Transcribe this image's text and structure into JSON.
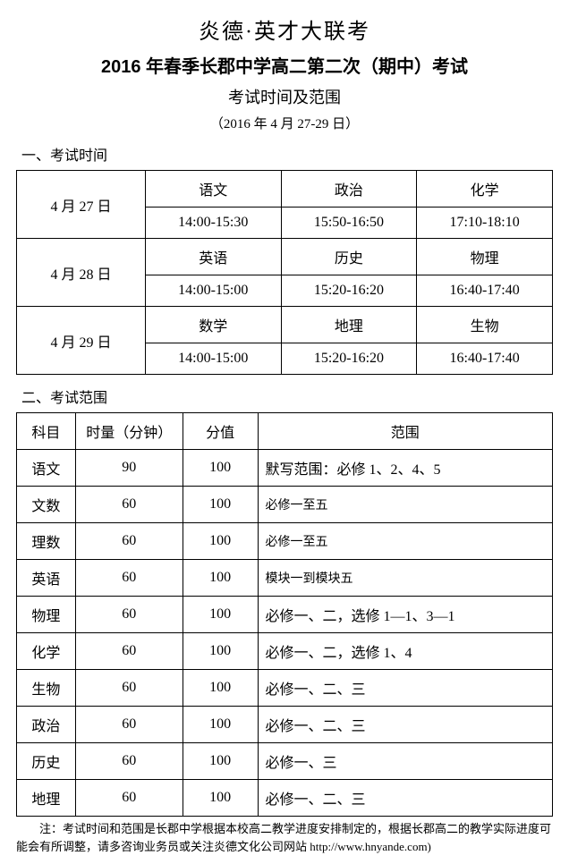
{
  "header": {
    "title1": "炎德·英才大联考",
    "title2": "2016 年春季长郡中学高二第二次（期中）考试",
    "title3": "考试时间及范围",
    "title4": "（2016 年 4 月 27-29 日）"
  },
  "section1": {
    "heading": "一、考试时间",
    "rows": [
      {
        "date": "4 月 27 日",
        "cells": [
          "语文",
          "政治",
          "化学",
          "14:00-15:30",
          "15:50-16:50",
          "17:10-18:10"
        ]
      },
      {
        "date": "4 月 28 日",
        "cells": [
          "英语",
          "历史",
          "物理",
          "14:00-15:00",
          "15:20-16:20",
          "16:40-17:40"
        ]
      },
      {
        "date": "4 月 29 日",
        "cells": [
          "数学",
          "地理",
          "生物",
          "14:00-15:00",
          "15:20-16:20",
          "16:40-17:40"
        ]
      }
    ]
  },
  "section2": {
    "heading": "二、考试范围",
    "columns": [
      "科目",
      "时量（分钟）",
      "分值",
      "范围"
    ],
    "rows": [
      {
        "subject": "语文",
        "duration": "90",
        "score": "100",
        "range": "默写范围：必修 1、2、4、5",
        "small": false
      },
      {
        "subject": "文数",
        "duration": "60",
        "score": "100",
        "range": "必修一至五",
        "small": true
      },
      {
        "subject": "理数",
        "duration": "60",
        "score": "100",
        "range": "必修一至五",
        "small": true
      },
      {
        "subject": "英语",
        "duration": "60",
        "score": "100",
        "range": "模块一到模块五",
        "small": true
      },
      {
        "subject": "物理",
        "duration": "60",
        "score": "100",
        "range": "必修一、二，选修 1—1、3—1",
        "small": false
      },
      {
        "subject": "化学",
        "duration": "60",
        "score": "100",
        "range": "必修一、二，选修 1、4",
        "small": false
      },
      {
        "subject": "生物",
        "duration": "60",
        "score": "100",
        "range": "必修一、二、三",
        "small": false
      },
      {
        "subject": "政治",
        "duration": "60",
        "score": "100",
        "range": "必修一、二、三",
        "small": false
      },
      {
        "subject": "历史",
        "duration": "60",
        "score": "100",
        "range": "必修一、三",
        "small": false
      },
      {
        "subject": "地理",
        "duration": "60",
        "score": "100",
        "range": "必修一、二、三",
        "small": false
      }
    ]
  },
  "footnote": "注：考试时间和范围是长郡中学根据本校高二教学进度安排制定的，根据长郡高二的教学实际进度可能会有所调整，请多咨询业务员或关注炎德文化公司网站 http://www.hnyande.com)",
  "layout": {
    "scheduleColWidths": [
      "24%",
      "25.3%",
      "25.3%",
      "25.3%"
    ],
    "scopeColWidths": [
      "11%",
      "20%",
      "14%",
      "55%"
    ]
  }
}
